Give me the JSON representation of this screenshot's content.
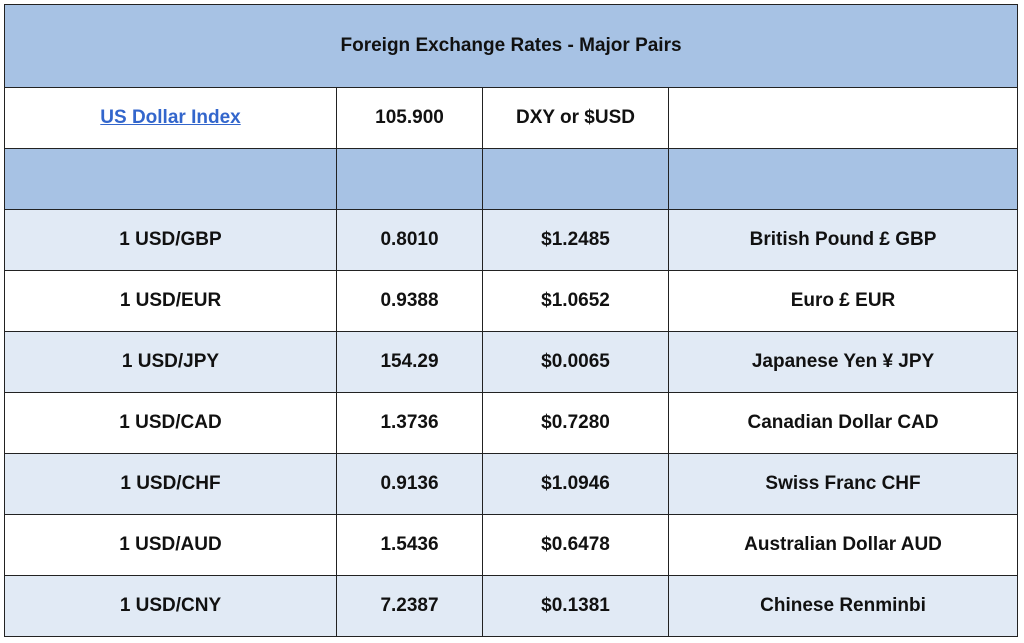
{
  "title": "Foreign Exchange Rates - Major Pairs",
  "index": {
    "name": "US Dollar Index",
    "value": "105.900",
    "symbol": "DXY or $USD",
    "extra": ""
  },
  "colors": {
    "header_bg": "#a7c2e4",
    "shaded_row_bg": "#e1eaf5",
    "plain_row_bg": "#ffffff",
    "link": "#3366cc"
  },
  "rows": [
    {
      "pair": "1 USD/GBP",
      "rate": "0.8010",
      "usd_value": "$1.2485",
      "currency": "British Pound £ GBP"
    },
    {
      "pair": "1 USD/EUR",
      "rate": "0.9388",
      "usd_value": "$1.0652",
      "currency": "Euro £ EUR"
    },
    {
      "pair": "1 USD/JPY",
      "rate": "154.29",
      "usd_value": "$0.0065",
      "currency": "Japanese Yen ¥ JPY"
    },
    {
      "pair": "1 USD/CAD",
      "rate": "1.3736",
      "usd_value": "$0.7280",
      "currency": "Canadian Dollar CAD"
    },
    {
      "pair": "1 USD/CHF",
      "rate": "0.9136",
      "usd_value": "$1.0946",
      "currency": "Swiss Franc CHF"
    },
    {
      "pair": "1 USD/AUD",
      "rate": "1.5436",
      "usd_value": "$0.6478",
      "currency": "Australian Dollar AUD"
    },
    {
      "pair": "1 USD/CNY",
      "rate": "7.2387",
      "usd_value": "$0.1381",
      "currency": "Chinese Renminbi"
    }
  ]
}
